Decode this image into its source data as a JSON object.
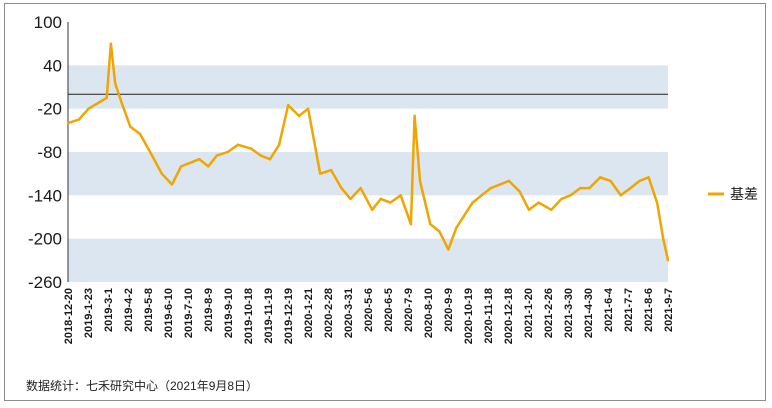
{
  "chart_data": {
    "type": "line",
    "title": "",
    "xlabel": "",
    "ylabel": "",
    "ylim": [
      -260,
      100
    ],
    "yticks": [
      100,
      40,
      -20,
      -80,
      -140,
      -200,
      -260
    ],
    "shaded_bands": [
      [
        -20,
        40
      ],
      [
        -140,
        -80
      ],
      [
        -260,
        -200
      ]
    ],
    "reference_line": 0,
    "x_tick_labels": [
      "2018-12-20",
      "2019-1-23",
      "2019-3-1",
      "2019-4-2",
      "2019-5-8",
      "2019-6-10",
      "2019-7-10",
      "2019-8-9",
      "2019-9-10",
      "2019-10-18",
      "2019-11-19",
      "2019-12-19",
      "2020-1-21",
      "2020-2-28",
      "2020-3-31",
      "2020-5-6",
      "2020-6-5",
      "2020-7-9",
      "2020-8-10",
      "2020-9-9",
      "2020-10-19",
      "2020-11-18",
      "2020-12-18",
      "2021-1-20",
      "2021-2-26",
      "2021-3-30",
      "2021-4-30",
      "2021-6-4",
      "2021-7-7",
      "2021-8-6",
      "2021-9-7"
    ],
    "legend_position": "right",
    "series": [
      {
        "name": "基差",
        "color": "#f0a500",
        "x": [
          "2018-12-20",
          "2019-1-7",
          "2019-1-23",
          "2019-2-12",
          "2019-2-22",
          "2019-3-1",
          "2019-3-8",
          "2019-3-18",
          "2019-4-2",
          "2019-4-18",
          "2019-5-8",
          "2019-5-24",
          "2019-6-10",
          "2019-6-25",
          "2019-7-10",
          "2019-7-25",
          "2019-8-9",
          "2019-8-23",
          "2019-9-10",
          "2019-9-27",
          "2019-10-18",
          "2019-11-4",
          "2019-11-19",
          "2019-12-4",
          "2019-12-19",
          "2020-1-6",
          "2020-1-21",
          "2020-2-10",
          "2020-2-28",
          "2020-3-16",
          "2020-3-31",
          "2020-4-17",
          "2020-5-6",
          "2020-5-20",
          "2020-6-5",
          "2020-6-22",
          "2020-7-9",
          "2020-7-15",
          "2020-7-24",
          "2020-8-10",
          "2020-8-25",
          "2020-9-9",
          "2020-9-22",
          "2020-10-19",
          "2020-11-3",
          "2020-11-18",
          "2020-12-3",
          "2020-12-18",
          "2021-1-5",
          "2021-1-20",
          "2021-2-5",
          "2021-2-26",
          "2021-3-15",
          "2021-3-30",
          "2021-4-15",
          "2021-4-30",
          "2021-5-18",
          "2021-6-4",
          "2021-6-21",
          "2021-7-7",
          "2021-7-22",
          "2021-8-6",
          "2021-8-20",
          "2021-8-30",
          "2021-9-7"
        ],
        "y": [
          -40,
          -35,
          -20,
          -10,
          -5,
          70,
          15,
          -10,
          -45,
          -55,
          -85,
          -110,
          -125,
          -100,
          -95,
          -90,
          -100,
          -85,
          -80,
          -70,
          -75,
          -85,
          -90,
          -70,
          -15,
          -30,
          -20,
          -110,
          -105,
          -130,
          -145,
          -130,
          -160,
          -145,
          -150,
          -140,
          -180,
          -30,
          -120,
          -180,
          -190,
          -215,
          -185,
          -150,
          -140,
          -130,
          -125,
          -120,
          -135,
          -160,
          -150,
          -160,
          -145,
          -140,
          -130,
          -130,
          -115,
          -120,
          -140,
          -130,
          -120,
          -115,
          -150,
          -200,
          -230
        ]
      }
    ]
  },
  "source_note": "数据统计：七禾研究中心（2021年9月8日）"
}
